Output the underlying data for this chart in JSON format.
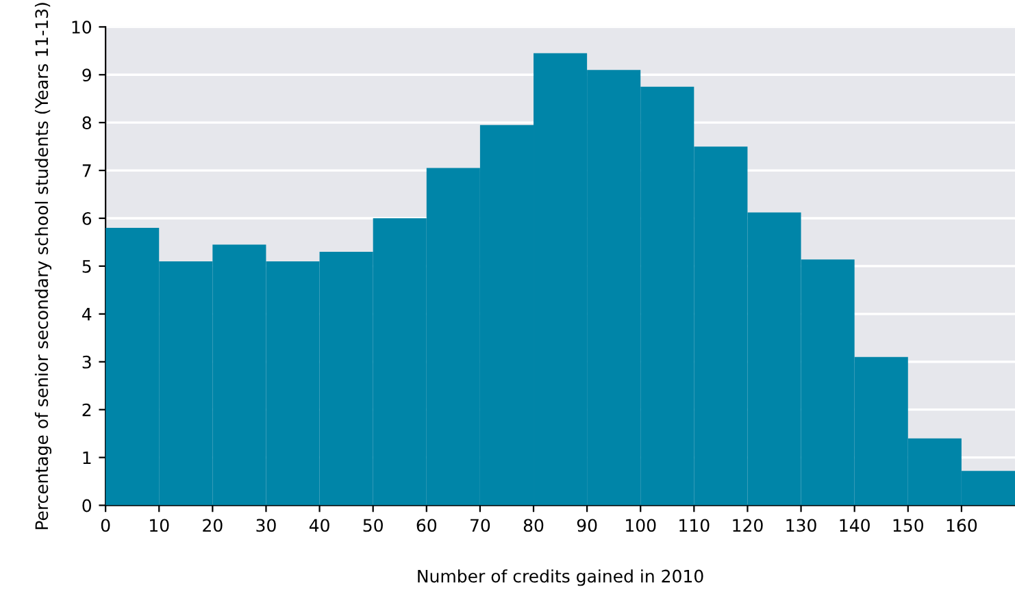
{
  "chart_data": {
    "type": "histogram",
    "xlabel": "Number of credits gained in 2010",
    "ylabel": "Percentage of senior secondary school students (Years 11-13)",
    "bins": [
      0,
      10,
      20,
      30,
      40,
      50,
      60,
      70,
      80,
      90,
      100,
      110,
      120,
      130,
      140,
      150,
      160,
      170
    ],
    "values": [
      5.8,
      5.1,
      5.45,
      5.1,
      5.3,
      6.0,
      7.05,
      7.95,
      9.45,
      9.1,
      8.75,
      7.5,
      6.12,
      5.14,
      3.1,
      1.4,
      0.72
    ],
    "color": "#0085a8",
    "xlim": [
      0,
      170
    ],
    "xticks": [
      0,
      10,
      20,
      30,
      40,
      50,
      60,
      70,
      80,
      90,
      100,
      110,
      120,
      130,
      140,
      150,
      160
    ],
    "ylim": [
      0,
      10
    ],
    "yticks": [
      0,
      1,
      2,
      3,
      4,
      5,
      6,
      7,
      8,
      9,
      10
    ],
    "grid": "y"
  }
}
